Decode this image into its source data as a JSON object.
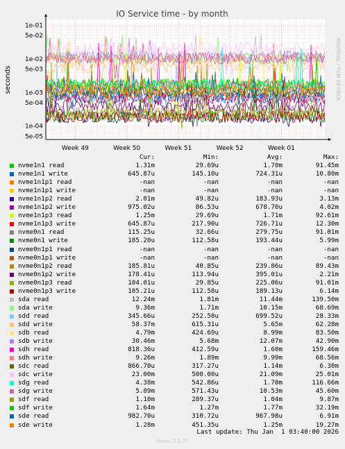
{
  "colors": {
    "grid_minor": "#e8a0a0",
    "grid_major": "#d09090",
    "axis": "#000000",
    "plot_bg": "#ffffff"
  },
  "watermark": "RRDTOOL / TOBI OETIKER",
  "chart_data": {
    "type": "line",
    "title": "IO Service time - by month",
    "ylabel": "seconds",
    "yscale": "log",
    "ylim": [
      4e-05,
      0.15
    ],
    "y_ticks": [
      {
        "value": 0.1,
        "label": "1e-01"
      },
      {
        "value": 0.05,
        "label": "5e-02"
      },
      {
        "value": 0.01,
        "label": "1e-02"
      },
      {
        "value": 0.005,
        "label": "5e-03"
      },
      {
        "value": 0.001,
        "label": "1e-03"
      },
      {
        "value": 0.0005,
        "label": "5e-04"
      },
      {
        "value": 0.0001,
        "label": "1e-04"
      },
      {
        "value": 5e-05,
        "label": "5e-05"
      }
    ],
    "x_range": [
      "2025-11-27",
      "2026-01-04"
    ],
    "x_ticks": [
      {
        "date": "2025-12-01",
        "label": "Week 49"
      },
      {
        "date": "2025-12-08",
        "label": "Week 50"
      },
      {
        "date": "2025-12-15",
        "label": "Week 51"
      },
      {
        "date": "2025-12-22",
        "label": "Week 52"
      },
      {
        "date": "2025-12-29",
        "label": "Week 01"
      }
    ],
    "data_start": "2025-11-27",
    "grid": true,
    "legend_columns": [
      "Cur:",
      "Min:",
      "Avg:",
      "Max:"
    ],
    "series": [
      {
        "name": "nvme1n1 read",
        "color": "#00cc00",
        "cur": "1.31m",
        "min": "29.69u",
        "avg": "1.70m",
        "max": "91.45m"
      },
      {
        "name": "nvme1n1 write",
        "color": "#0066b3",
        "cur": "645.87u",
        "min": "145.10u",
        "avg": "724.31u",
        "max": "10.80m"
      },
      {
        "name": "nvme1n1p1 read",
        "color": "#ff8000",
        "cur": "-nan",
        "min": "-nan",
        "avg": "-nan",
        "max": "-nan"
      },
      {
        "name": "nvme1n1p1 write",
        "color": "#ffcc00",
        "cur": "-nan",
        "min": "-nan",
        "avg": "-nan",
        "max": "-nan"
      },
      {
        "name": "nvme1n1p2 read",
        "color": "#330099",
        "cur": "2.01m",
        "min": "49.82u",
        "avg": "183.93u",
        "max": "3.13m"
      },
      {
        "name": "nvme1n1p2 write",
        "color": "#990099",
        "cur": "975.02u",
        "min": "86.53u",
        "avg": "678.70u",
        "max": "4.02m"
      },
      {
        "name": "nvme1n1p3 read",
        "color": "#ccff00",
        "cur": "1.25m",
        "min": "29.69u",
        "avg": "1.71m",
        "max": "92.61m"
      },
      {
        "name": "nvme1n1p3 write",
        "color": "#ff0000",
        "cur": "645.87u",
        "min": "217.90u",
        "avg": "726.71u",
        "max": "12.30m"
      },
      {
        "name": "nvme0n1 read",
        "color": "#808080",
        "cur": "115.25u",
        "min": "32.66u",
        "avg": "279.75u",
        "max": "91.01m"
      },
      {
        "name": "nvme0n1 write",
        "color": "#008f00",
        "cur": "185.20u",
        "min": "112.58u",
        "avg": "193.44u",
        "max": "5.99m"
      },
      {
        "name": "nvme0n1p1 read",
        "color": "#00487d",
        "cur": "-nan",
        "min": "-nan",
        "avg": "-nan",
        "max": "-nan"
      },
      {
        "name": "nvme0n1p1 write",
        "color": "#b35a00",
        "cur": "-nan",
        "min": "-nan",
        "avg": "-nan",
        "max": "-nan"
      },
      {
        "name": "nvme0n1p2 read",
        "color": "#b38f00",
        "cur": "185.81u",
        "min": "40.85u",
        "avg": "239.86u",
        "max": "89.43m"
      },
      {
        "name": "nvme0n1p2 write",
        "color": "#6b006b",
        "cur": "178.41u",
        "min": "113.94u",
        "avg": "395.01u",
        "max": "2.21m"
      },
      {
        "name": "nvme0n1p3 read",
        "color": "#8fb300",
        "cur": "104.01u",
        "min": "29.85u",
        "avg": "225.06u",
        "max": "91.01m"
      },
      {
        "name": "nvme0n1p3 write",
        "color": "#b30000",
        "cur": "185.21u",
        "min": "112.58u",
        "avg": "189.13u",
        "max": "6.14m"
      },
      {
        "name": "sda read",
        "color": "#bebebe",
        "cur": "12.24m",
        "min": "1.81m",
        "avg": "11.44m",
        "max": "139.50m"
      },
      {
        "name": "sda write",
        "color": "#80ff80",
        "cur": "9.36m",
        "min": "1.71m",
        "avg": "10.15m",
        "max": "68.69m"
      },
      {
        "name": "sdd read",
        "color": "#80c9ff",
        "cur": "345.66u",
        "min": "252.50u",
        "avg": "699.52u",
        "max": "28.33m"
      },
      {
        "name": "sdd write",
        "color": "#ffc080",
        "cur": "58.37m",
        "min": "615.31u",
        "avg": "5.65m",
        "max": "62.28m"
      },
      {
        "name": "sdb read",
        "color": "#ffe680",
        "cur": "4.79m",
        "min": "424.69u",
        "avg": "8.99m",
        "max": "83.50m"
      },
      {
        "name": "sdb write",
        "color": "#aa80ff",
        "cur": "30.46m",
        "min": "5.68m",
        "avg": "12.07m",
        "max": "42.90m"
      },
      {
        "name": "sdh read",
        "color": "#ee00cc",
        "cur": "818.36u",
        "min": "412.59u",
        "avg": "1.60m",
        "max": "159.46m"
      },
      {
        "name": "sdh write",
        "color": "#ff8080",
        "cur": "9.26m",
        "min": "1.89m",
        "avg": "9.99m",
        "max": "68.56m"
      },
      {
        "name": "sdc read",
        "color": "#666600",
        "cur": "866.70u",
        "min": "317.27u",
        "avg": "1.14m",
        "max": "6.30m"
      },
      {
        "name": "sdc write",
        "color": "#ffbfff",
        "cur": "23.00m",
        "min": "500.00u",
        "avg": "21.09m",
        "max": "25.01m"
      },
      {
        "name": "sdg read",
        "color": "#00ffcc",
        "cur": "4.38m",
        "min": "542.86u",
        "avg": "1.70m",
        "max": "116.66m"
      },
      {
        "name": "sdg write",
        "color": "#cc6699",
        "cur": "5.89m",
        "min": "571.43u",
        "avg": "10.53m",
        "max": "45.60m"
      },
      {
        "name": "sdf read",
        "color": "#999900",
        "cur": "1.10m",
        "min": "289.37u",
        "avg": "1.04m",
        "max": "9.87m"
      },
      {
        "name": "sdf write",
        "color": "#00cc00",
        "cur": "1.64m",
        "min": "1.27m",
        "avg": "1.77m",
        "max": "32.19m"
      },
      {
        "name": "sde read",
        "color": "#0066b3",
        "cur": "982.70u",
        "min": "310.72u",
        "avg": "967.98u",
        "max": "6.91m"
      },
      {
        "name": "sde write",
        "color": "#ff8000",
        "cur": "1.28m",
        "min": "451.35u",
        "avg": "1.25m",
        "max": "19.27m"
      }
    ]
  },
  "footer": {
    "last_update": "Last update: Thu Jan  1 03:40:00 2026",
    "munin_version": "Munin 2.0.73"
  }
}
